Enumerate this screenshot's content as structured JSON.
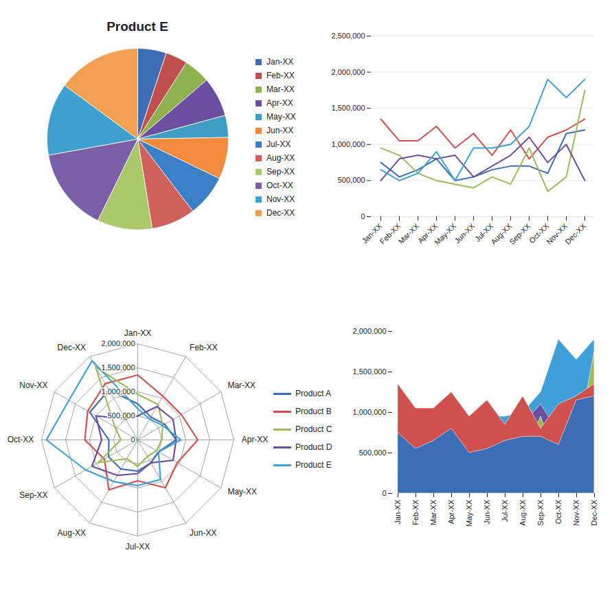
{
  "chart_data": [
    {
      "type": "pie",
      "title": "Product E",
      "categories": [
        "Jan-XX",
        "Feb-XX",
        "Mar-XX",
        "Apr-XX",
        "May-XX",
        "Jun-XX",
        "Jul-XX",
        "Aug-XX",
        "Sep-XX",
        "Oct-XX",
        "Nov-XX",
        "Dec-XX"
      ],
      "values": [
        650000,
        500000,
        600000,
        900000,
        500000,
        950000,
        950000,
        1000000,
        1250000,
        1900000,
        1650000,
        1900000
      ],
      "colors": [
        "#3d6eb5",
        "#c0504d",
        "#8fb04f",
        "#6a4fa0",
        "#3f9cc4",
        "#f08a3c",
        "#3c7fc6",
        "#d0605c",
        "#a9c96b",
        "#7a5ea6",
        "#3fa0cf",
        "#f0a050"
      ],
      "legend": "right"
    },
    {
      "type": "line",
      "categories": [
        "Jan-XX",
        "Feb-XX",
        "Mar-XX",
        "Apr-XX",
        "May-XX",
        "Jun-XX",
        "Jul-XX",
        "Aug-XX",
        "Sep-XX",
        "Oct-XX",
        "Nov-XX",
        "Dec-XX"
      ],
      "series": [
        {
          "name": "Product A",
          "color": "#3d6eb5",
          "values": [
            750000,
            550000,
            650000,
            800000,
            500000,
            550000,
            650000,
            700000,
            700000,
            600000,
            1150000,
            1200000
          ]
        },
        {
          "name": "Product B",
          "color": "#d0504d",
          "values": [
            1350000,
            1050000,
            1050000,
            1250000,
            950000,
            1150000,
            850000,
            1200000,
            800000,
            1100000,
            1200000,
            1350000
          ]
        },
        {
          "name": "Product C",
          "color": "#9bbb59",
          "values": [
            950000,
            850000,
            600000,
            500000,
            450000,
            400000,
            550000,
            450000,
            950000,
            350000,
            550000,
            1750000
          ]
        },
        {
          "name": "Product D",
          "color": "#6a4fa0",
          "values": [
            500000,
            800000,
            850000,
            800000,
            850000,
            550000,
            700000,
            850000,
            1100000,
            750000,
            1000000,
            500000
          ]
        },
        {
          "name": "Product E",
          "color": "#3fa0d9",
          "values": [
            650000,
            500000,
            600000,
            900000,
            500000,
            950000,
            950000,
            1000000,
            1250000,
            1900000,
            1650000,
            1900000
          ]
        }
      ],
      "ylim": [
        0,
        2500000
      ],
      "yticks": [
        0,
        {
          "value": 500000,
          "label": "500,000"
        },
        {
          "value": 1000000,
          "label": "1,000,000"
        },
        {
          "value": 1500000,
          "label": "1,500,000"
        },
        {
          "value": 2000000,
          "label": "2,000,000"
        },
        {
          "value": 2500000,
          "label": "2,500,000"
        }
      ],
      "grid": true
    },
    {
      "type": "radar",
      "categories": [
        "Jan-XX",
        "Feb-XX",
        "Mar-XX",
        "Apr-XX",
        "May-XX",
        "Jun-XX",
        "Jul-XX",
        "Aug-XX",
        "Sep-XX",
        "Oct-XX",
        "Nov-XX",
        "Dec-XX"
      ],
      "series": [
        {
          "name": "Product A",
          "color": "#3d6eb5",
          "values": [
            750000,
            550000,
            650000,
            800000,
            500000,
            550000,
            650000,
            700000,
            700000,
            600000,
            1150000,
            1200000
          ]
        },
        {
          "name": "Product B",
          "color": "#d0504d",
          "values": [
            1350000,
            1050000,
            1050000,
            1250000,
            950000,
            1150000,
            850000,
            1200000,
            800000,
            1100000,
            1200000,
            1350000
          ]
        },
        {
          "name": "Product C",
          "color": "#9bbb59",
          "values": [
            950000,
            850000,
            600000,
            500000,
            450000,
            400000,
            550000,
            450000,
            950000,
            350000,
            550000,
            1750000
          ]
        },
        {
          "name": "Product D",
          "color": "#6a4fa0",
          "values": [
            500000,
            800000,
            850000,
            800000,
            850000,
            550000,
            700000,
            850000,
            1100000,
            750000,
            1000000,
            500000
          ]
        },
        {
          "name": "Product E",
          "color": "#3fa0d9",
          "values": [
            650000,
            500000,
            600000,
            900000,
            500000,
            950000,
            950000,
            1000000,
            1250000,
            1900000,
            1650000,
            1900000
          ]
        }
      ],
      "ylim": [
        0,
        2000000
      ],
      "yticks": [
        0,
        {
          "value": 500000,
          "label": "500,000"
        },
        {
          "value": 1000000,
          "label": "1,000,000"
        },
        {
          "value": 1500000,
          "label": "1,500,000"
        },
        {
          "value": 2000000,
          "label": "2,000,000"
        }
      ],
      "grid": true,
      "legend": "right"
    },
    {
      "type": "area",
      "categories": [
        "Jan-XX",
        "Feb-XX",
        "Mar-XX",
        "Apr-XX",
        "May-XX",
        "Jun-XX",
        "Jul-XX",
        "Aug-XX",
        "Sep-XX",
        "Oct-XX",
        "Nov-XX",
        "Dec-XX"
      ],
      "series": [
        {
          "name": "Product A",
          "color": "#3d6eb5",
          "values": [
            750000,
            550000,
            650000,
            800000,
            500000,
            550000,
            650000,
            700000,
            700000,
            600000,
            1150000,
            1200000
          ]
        },
        {
          "name": "Product B",
          "color": "#d0504d",
          "values": [
            1350000,
            1050000,
            1050000,
            1250000,
            950000,
            1150000,
            850000,
            1200000,
            800000,
            1100000,
            1200000,
            1350000
          ]
        },
        {
          "name": "Product C",
          "color": "#9bbb59",
          "values": [
            950000,
            850000,
            600000,
            500000,
            450000,
            400000,
            550000,
            450000,
            950000,
            350000,
            550000,
            1750000
          ]
        },
        {
          "name": "Product D",
          "color": "#6a4fa0",
          "values": [
            500000,
            800000,
            850000,
            800000,
            850000,
            550000,
            700000,
            850000,
            1100000,
            750000,
            1000000,
            500000
          ]
        },
        {
          "name": "Product E",
          "color": "#3fa0d9",
          "values": [
            650000,
            500000,
            600000,
            900000,
            500000,
            950000,
            950000,
            1000000,
            1250000,
            1900000,
            1650000,
            1900000
          ]
        }
      ],
      "ylim": [
        0,
        2000000
      ],
      "yticks": [
        0,
        {
          "value": 500000,
          "label": "500,000"
        },
        {
          "value": 1000000,
          "label": "1,000,000"
        },
        {
          "value": 1500000,
          "label": "1,500,000"
        },
        {
          "value": 2000000,
          "label": "2,000,000"
        }
      ],
      "stacked": false,
      "grid": false
    }
  ]
}
